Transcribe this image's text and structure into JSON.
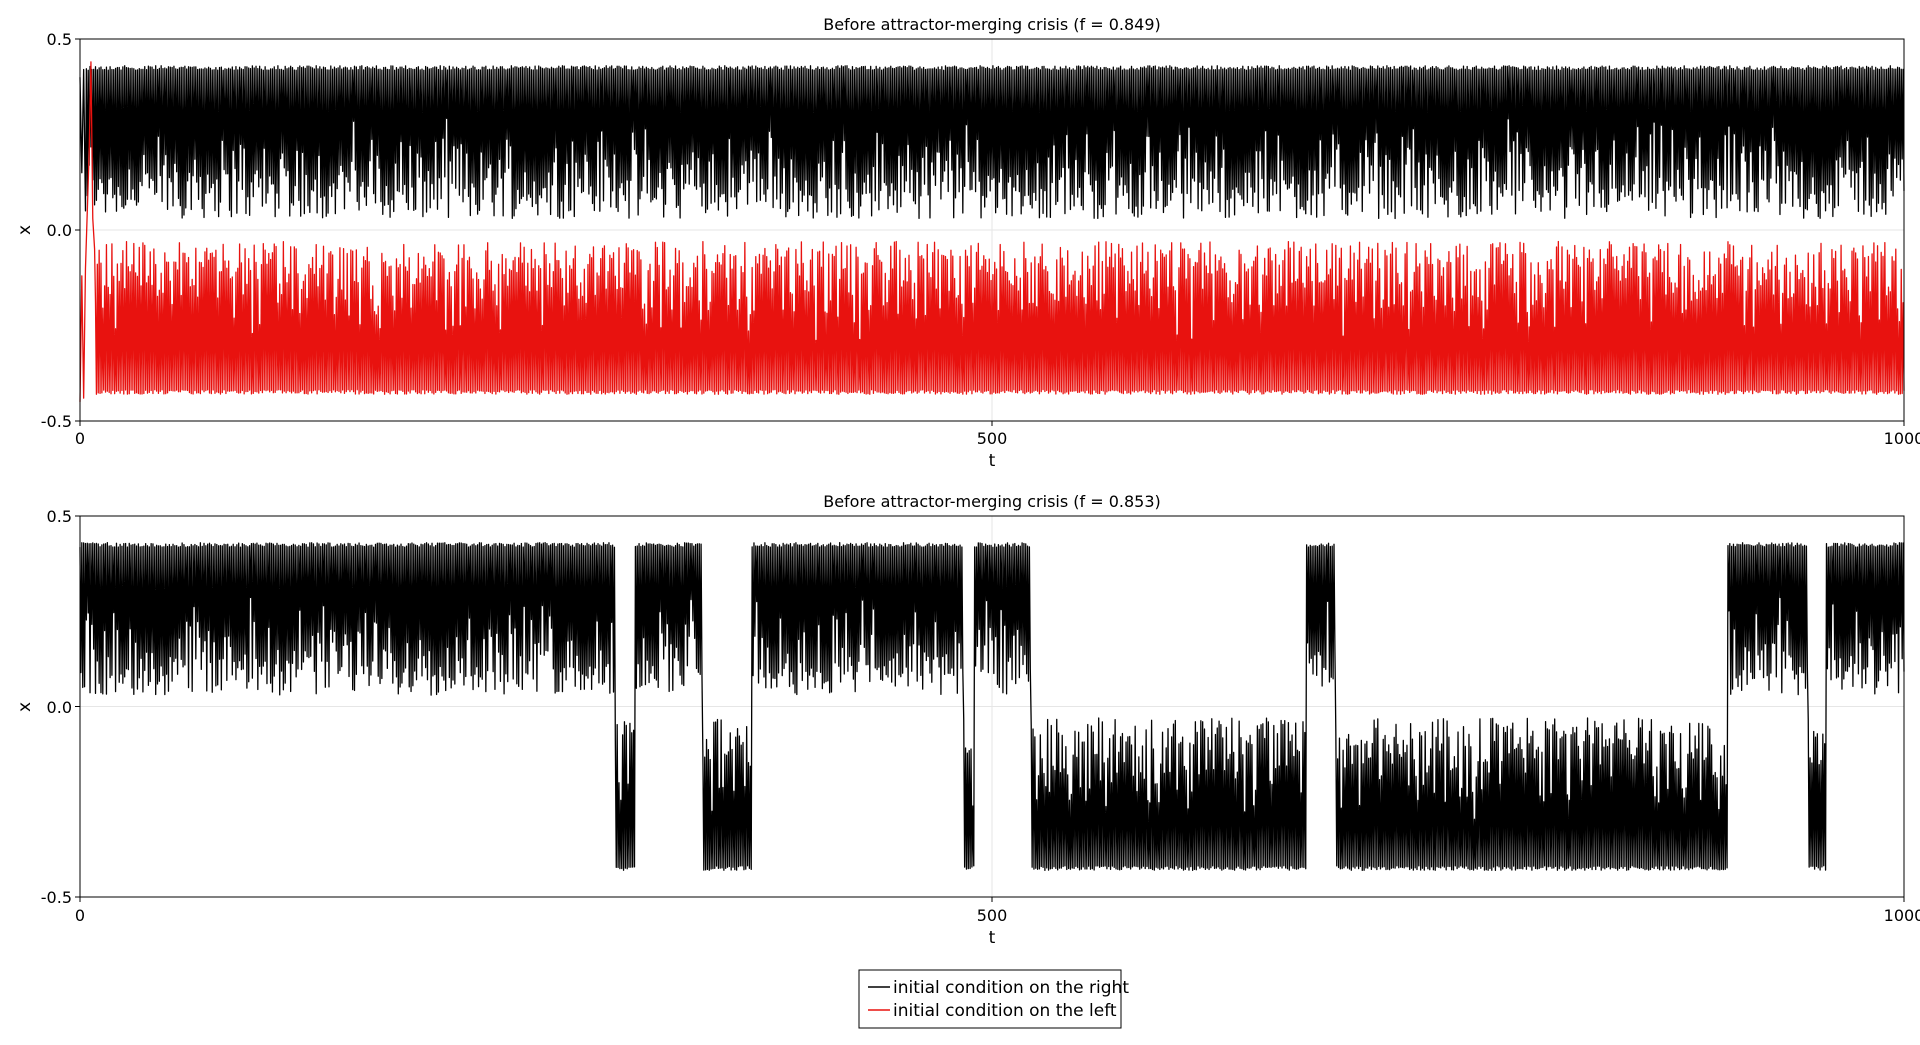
{
  "chart_data": [
    {
      "type": "line",
      "title": "Before attractor-merging crisis (f = 0.849)",
      "xlabel": "t",
      "ylabel": "x",
      "xlim": [
        0,
        1000
      ],
      "ylim": [
        -0.5,
        0.5
      ],
      "xticks": [
        "0",
        "500",
        "1000"
      ],
      "yticks": [
        "-0.5",
        "0.0",
        "0.5"
      ],
      "grid": true,
      "series": [
        {
          "name": "initial condition on the right",
          "color": "#000000",
          "segments": [
            {
              "t_start": 0,
              "t_end": 1000,
              "regime": "right",
              "low": 0.03,
              "high": 0.43
            }
          ],
          "transient": [
            [
              0,
              0.4
            ],
            [
              1,
              0.15
            ],
            [
              2,
              0.42
            ],
            [
              3,
              0.05
            ]
          ]
        },
        {
          "name": "initial condition on the left",
          "color": "#e8120f",
          "segments": [
            {
              "t_start": 8,
              "t_end": 1000,
              "regime": "left",
              "low": -0.43,
              "high": -0.03
            }
          ],
          "transient": [
            [
              0,
              -0.45
            ],
            [
              1,
              -0.12
            ],
            [
              2,
              -0.44
            ],
            [
              3,
              -0.1
            ],
            [
              4,
              0.05
            ],
            [
              5,
              0.2
            ],
            [
              6,
              0.44
            ],
            [
              7,
              0.03
            ],
            [
              8,
              -0.05
            ]
          ]
        }
      ]
    },
    {
      "type": "line",
      "title": "Before attractor-merging crisis (f = 0.853)",
      "xlabel": "t",
      "ylabel": "x",
      "xlim": [
        0,
        1000
      ],
      "ylim": [
        -0.5,
        0.5
      ],
      "xticks": [
        "0",
        "500",
        "1000"
      ],
      "yticks": [
        "-0.5",
        "0.0",
        "0.5"
      ],
      "grid": true,
      "series": [
        {
          "name": "initial condition on the right",
          "color": "#000000",
          "segments": [
            {
              "t_start": 0,
              "t_end": 293,
              "regime": "right",
              "low": 0.03,
              "high": 0.43
            },
            {
              "t_start": 293,
              "t_end": 304,
              "regime": "left",
              "low": -0.43,
              "high": -0.03
            },
            {
              "t_start": 304,
              "t_end": 341,
              "regime": "right",
              "low": 0.03,
              "high": 0.43
            },
            {
              "t_start": 341,
              "t_end": 368,
              "regime": "left",
              "low": -0.43,
              "high": -0.03
            },
            {
              "t_start": 368,
              "t_end": 484,
              "regime": "right",
              "low": 0.03,
              "high": 0.43
            },
            {
              "t_start": 484,
              "t_end": 490,
              "regime": "left",
              "low": -0.43,
              "high": -0.03
            },
            {
              "t_start": 490,
              "t_end": 521,
              "regime": "right",
              "low": 0.03,
              "high": 0.43
            },
            {
              "t_start": 521,
              "t_end": 672,
              "regime": "left",
              "low": -0.43,
              "high": -0.03
            },
            {
              "t_start": 672,
              "t_end": 688,
              "regime": "right",
              "low": 0.03,
              "high": 0.43
            },
            {
              "t_start": 688,
              "t_end": 903,
              "regime": "left",
              "low": -0.43,
              "high": -0.03
            },
            {
              "t_start": 903,
              "t_end": 947,
              "regime": "right",
              "low": 0.03,
              "high": 0.43
            },
            {
              "t_start": 947,
              "t_end": 957,
              "regime": "left",
              "low": -0.43,
              "high": -0.03
            },
            {
              "t_start": 957,
              "t_end": 1000,
              "regime": "right",
              "low": 0.03,
              "high": 0.43
            }
          ],
          "transient": []
        }
      ]
    }
  ],
  "legend": {
    "placement": "bottom-center",
    "items": [
      {
        "label": "initial condition on the right",
        "color": "#000000"
      },
      {
        "label": "initial condition on the left",
        "color": "#e8120f"
      }
    ]
  }
}
